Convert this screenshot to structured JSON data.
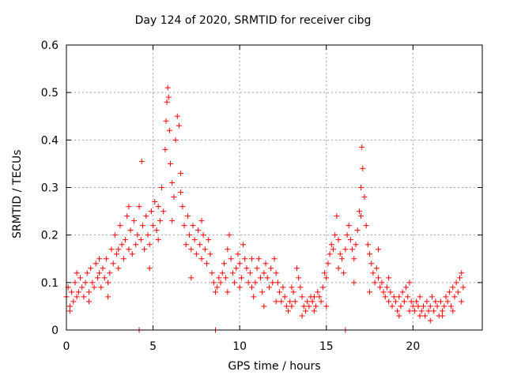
{
  "chart_data": {
    "type": "scatter",
    "title": "Day 124 of 2020, SRMTID for receiver cibg",
    "xlabel": "GPS time / hours",
    "ylabel": "SRMTID / TECUs",
    "xlim": [
      0,
      24
    ],
    "ylim": [
      0,
      0.6
    ],
    "xticks": [
      0,
      5,
      10,
      15,
      20
    ],
    "yticks": [
      0,
      0.1,
      0.2,
      0.3,
      0.4,
      0.5,
      0.6
    ],
    "xtick_labels": [
      "0",
      "5",
      "10",
      "15",
      "20"
    ],
    "ytick_labels": [
      "0",
      "0.1",
      "0.2",
      "0.3",
      "0.4",
      "0.5",
      "0.6"
    ],
    "grid": true,
    "marker": "+",
    "color": "#ff0000",
    "series": [
      {
        "name": "SRMTID",
        "points": [
          [
            0.0,
            0.07
          ],
          [
            0.1,
            0.09
          ],
          [
            0.2,
            0.05
          ],
          [
            0.3,
            0.08
          ],
          [
            0.4,
            0.06
          ],
          [
            0.5,
            0.1
          ],
          [
            0.6,
            0.07
          ],
          [
            0.7,
            0.08
          ],
          [
            0.8,
            0.11
          ],
          [
            0.9,
            0.09
          ],
          [
            1.0,
            0.07
          ],
          [
            1.1,
            0.1
          ],
          [
            1.2,
            0.12
          ],
          [
            1.3,
            0.08
          ],
          [
            1.4,
            0.13
          ],
          [
            1.5,
            0.1
          ],
          [
            1.6,
            0.09
          ],
          [
            1.7,
            0.14
          ],
          [
            1.8,
            0.11
          ],
          [
            1.9,
            0.12
          ],
          [
            2.0,
            0.09
          ],
          [
            2.1,
            0.13
          ],
          [
            2.2,
            0.11
          ],
          [
            2.3,
            0.15
          ],
          [
            2.4,
            0.1
          ],
          [
            2.5,
            0.12
          ],
          [
            2.6,
            0.17
          ],
          [
            2.7,
            0.14
          ],
          [
            2.8,
            0.2
          ],
          [
            2.9,
            0.16
          ],
          [
            3.0,
            0.13
          ],
          [
            3.1,
            0.22
          ],
          [
            3.2,
            0.18
          ],
          [
            3.3,
            0.15
          ],
          [
            3.4,
            0.19
          ],
          [
            3.5,
            0.24
          ],
          [
            3.6,
            0.17
          ],
          [
            3.7,
            0.21
          ],
          [
            3.8,
            0.16
          ],
          [
            3.9,
            0.23
          ],
          [
            4.0,
            0.18
          ],
          [
            4.1,
            0.2
          ],
          [
            4.2,
            0.26
          ],
          [
            4.3,
            0.19
          ],
          [
            4.35,
            0.355
          ],
          [
            4.4,
            0.22
          ],
          [
            4.5,
            0.17
          ],
          [
            4.6,
            0.24
          ],
          [
            4.7,
            0.2
          ],
          [
            4.8,
            0.18
          ],
          [
            4.9,
            0.25
          ],
          [
            5.0,
            0.22
          ],
          [
            5.1,
            0.27
          ],
          [
            5.2,
            0.21
          ],
          [
            5.3,
            0.26
          ],
          [
            5.4,
            0.23
          ],
          [
            5.5,
            0.3
          ],
          [
            5.6,
            0.25
          ],
          [
            5.7,
            0.38
          ],
          [
            5.75,
            0.44
          ],
          [
            5.8,
            0.48
          ],
          [
            5.85,
            0.51
          ],
          [
            5.9,
            0.49
          ],
          [
            5.95,
            0.42
          ],
          [
            6.0,
            0.35
          ],
          [
            6.1,
            0.31
          ],
          [
            6.2,
            0.28
          ],
          [
            6.3,
            0.4
          ],
          [
            6.4,
            0.45
          ],
          [
            6.5,
            0.43
          ],
          [
            6.6,
            0.33
          ],
          [
            6.7,
            0.26
          ],
          [
            6.8,
            0.22
          ],
          [
            6.9,
            0.18
          ],
          [
            7.0,
            0.24
          ],
          [
            7.1,
            0.2
          ],
          [
            7.2,
            0.17
          ],
          [
            7.3,
            0.22
          ],
          [
            7.4,
            0.19
          ],
          [
            7.5,
            0.16
          ],
          [
            7.6,
            0.21
          ],
          [
            7.7,
            0.18
          ],
          [
            7.8,
            0.15
          ],
          [
            7.9,
            0.2
          ],
          [
            8.0,
            0.17
          ],
          [
            8.1,
            0.14
          ],
          [
            8.2,
            0.19
          ],
          [
            8.3,
            0.16
          ],
          [
            8.4,
            0.12
          ],
          [
            8.5,
            0.1
          ],
          [
            8.6,
            0.08
          ],
          [
            8.7,
            0.09
          ],
          [
            8.8,
            0.11
          ],
          [
            8.9,
            0.1
          ],
          [
            9.0,
            0.12
          ],
          [
            9.1,
            0.14
          ],
          [
            9.2,
            0.11
          ],
          [
            9.3,
            0.17
          ],
          [
            9.4,
            0.2
          ],
          [
            9.5,
            0.15
          ],
          [
            9.6,
            0.12
          ],
          [
            9.7,
            0.1
          ],
          [
            9.8,
            0.13
          ],
          [
            9.9,
            0.16
          ],
          [
            10.0,
            0.14
          ],
          [
            10.1,
            0.11
          ],
          [
            10.2,
            0.18
          ],
          [
            10.3,
            0.15
          ],
          [
            10.4,
            0.13
          ],
          [
            10.5,
            0.1
          ],
          [
            10.6,
            0.12
          ],
          [
            10.7,
            0.09
          ],
          [
            10.8,
            0.07
          ],
          [
            10.9,
            0.1
          ],
          [
            11.0,
            0.13
          ],
          [
            11.1,
            0.15
          ],
          [
            11.2,
            0.11
          ],
          [
            11.3,
            0.08
          ],
          [
            11.4,
            0.12
          ],
          [
            11.5,
            0.14
          ],
          [
            11.6,
            0.11
          ],
          [
            11.7,
            0.09
          ],
          [
            11.8,
            0.13
          ],
          [
            11.9,
            0.1
          ],
          [
            12.0,
            0.15
          ],
          [
            12.1,
            0.12
          ],
          [
            12.2,
            0.1
          ],
          [
            12.3,
            0.08
          ],
          [
            12.4,
            0.06
          ],
          [
            12.5,
            0.09
          ],
          [
            12.6,
            0.07
          ],
          [
            12.7,
            0.05
          ],
          [
            12.8,
            0.04
          ],
          [
            12.9,
            0.06
          ],
          [
            13.0,
            0.05
          ],
          [
            13.1,
            0.08
          ],
          [
            13.2,
            0.06
          ],
          [
            13.3,
            0.13
          ],
          [
            13.4,
            0.11
          ],
          [
            13.5,
            0.09
          ],
          [
            13.6,
            0.07
          ],
          [
            13.7,
            0.05
          ],
          [
            13.8,
            0.04
          ],
          [
            13.9,
            0.06
          ],
          [
            14.0,
            0.05
          ],
          [
            14.1,
            0.07
          ],
          [
            14.2,
            0.06
          ],
          [
            14.3,
            0.04
          ],
          [
            14.4,
            0.05
          ],
          [
            14.5,
            0.08
          ],
          [
            14.6,
            0.07
          ],
          [
            14.7,
            0.06
          ],
          [
            14.8,
            0.09
          ],
          [
            14.9,
            0.12
          ],
          [
            15.0,
            0.11
          ],
          [
            15.1,
            0.14
          ],
          [
            15.2,
            0.16
          ],
          [
            15.3,
            0.18
          ],
          [
            15.4,
            0.17
          ],
          [
            15.5,
            0.2
          ],
          [
            15.6,
            0.24
          ],
          [
            15.7,
            0.19
          ],
          [
            15.8,
            0.16
          ],
          [
            15.9,
            0.15
          ],
          [
            16.0,
            0.12
          ],
          [
            16.1,
            0.17
          ],
          [
            16.2,
            0.2
          ],
          [
            16.3,
            0.22
          ],
          [
            16.4,
            0.19
          ],
          [
            16.5,
            0.17
          ],
          [
            16.6,
            0.15
          ],
          [
            16.7,
            0.18
          ],
          [
            16.8,
            0.21
          ],
          [
            16.9,
            0.25
          ],
          [
            17.0,
            0.3
          ],
          [
            17.05,
            0.385
          ],
          [
            17.1,
            0.34
          ],
          [
            17.2,
            0.28
          ],
          [
            17.3,
            0.22
          ],
          [
            17.4,
            0.18
          ],
          [
            17.5,
            0.16
          ],
          [
            17.6,
            0.14
          ],
          [
            17.7,
            0.12
          ],
          [
            17.8,
            0.1
          ],
          [
            17.9,
            0.13
          ],
          [
            18.0,
            0.11
          ],
          [
            18.1,
            0.09
          ],
          [
            18.2,
            0.1
          ],
          [
            18.3,
            0.08
          ],
          [
            18.4,
            0.07
          ],
          [
            18.5,
            0.09
          ],
          [
            18.6,
            0.06
          ],
          [
            18.7,
            0.08
          ],
          [
            18.8,
            0.05
          ],
          [
            18.9,
            0.07
          ],
          [
            19.0,
            0.06
          ],
          [
            19.1,
            0.04
          ],
          [
            19.2,
            0.07
          ],
          [
            19.3,
            0.05
          ],
          [
            19.4,
            0.08
          ],
          [
            19.5,
            0.06
          ],
          [
            19.6,
            0.09
          ],
          [
            19.7,
            0.07
          ],
          [
            19.8,
            0.1
          ],
          [
            19.9,
            0.06
          ],
          [
            20.0,
            0.05
          ],
          [
            20.1,
            0.04
          ],
          [
            20.2,
            0.06
          ],
          [
            20.3,
            0.05
          ],
          [
            20.4,
            0.07
          ],
          [
            20.5,
            0.04
          ],
          [
            20.6,
            0.05
          ],
          [
            20.7,
            0.03
          ],
          [
            20.8,
            0.06
          ],
          [
            20.9,
            0.04
          ],
          [
            21.0,
            0.05
          ],
          [
            21.1,
            0.07
          ],
          [
            21.2,
            0.04
          ],
          [
            21.3,
            0.06
          ],
          [
            21.4,
            0.05
          ],
          [
            21.5,
            0.03
          ],
          [
            21.6,
            0.06
          ],
          [
            21.7,
            0.04
          ],
          [
            21.8,
            0.05
          ],
          [
            21.9,
            0.07
          ],
          [
            22.0,
            0.06
          ],
          [
            22.1,
            0.08
          ],
          [
            22.2,
            0.05
          ],
          [
            22.3,
            0.09
          ],
          [
            22.4,
            0.07
          ],
          [
            22.5,
            0.1
          ],
          [
            22.6,
            0.08
          ],
          [
            22.7,
            0.11
          ],
          [
            22.8,
            0.12
          ],
          [
            22.9,
            0.09
          ],
          [
            0.2,
            0.04
          ],
          [
            0.6,
            0.12
          ],
          [
            1.3,
            0.06
          ],
          [
            1.9,
            0.15
          ],
          [
            2.4,
            0.07
          ],
          [
            3.0,
            0.17
          ],
          [
            3.6,
            0.26
          ],
          [
            4.2,
            0.0
          ],
          [
            4.8,
            0.13
          ],
          [
            5.3,
            0.19
          ],
          [
            6.1,
            0.23
          ],
          [
            6.6,
            0.29
          ],
          [
            7.2,
            0.11
          ],
          [
            7.8,
            0.23
          ],
          [
            8.6,
            0.0
          ],
          [
            9.3,
            0.08
          ],
          [
            10.0,
            0.09
          ],
          [
            10.7,
            0.15
          ],
          [
            11.4,
            0.05
          ],
          [
            12.1,
            0.06
          ],
          [
            13.0,
            0.09
          ],
          [
            13.6,
            0.03
          ],
          [
            14.3,
            0.07
          ],
          [
            15.0,
            0.05
          ],
          [
            15.7,
            0.13
          ],
          [
            16.1,
            0.0
          ],
          [
            16.6,
            0.1
          ],
          [
            17.0,
            0.24
          ],
          [
            17.5,
            0.08
          ],
          [
            18.0,
            0.17
          ],
          [
            18.6,
            0.11
          ],
          [
            19.2,
            0.03
          ],
          [
            19.8,
            0.04
          ],
          [
            20.4,
            0.03
          ],
          [
            21.0,
            0.02
          ],
          [
            21.7,
            0.03
          ],
          [
            22.3,
            0.04
          ],
          [
            22.8,
            0.06
          ]
        ]
      }
    ]
  }
}
